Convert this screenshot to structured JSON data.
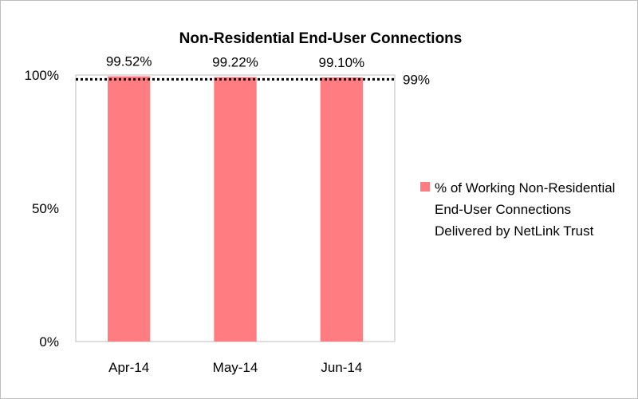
{
  "chart_data": {
    "type": "bar",
    "title": "Non-Residential End-User Connections",
    "categories": [
      "Apr-14",
      "May-14",
      "Jun-14"
    ],
    "series": [
      {
        "name": "% of Working Non-Residential End-User Connections Delivered by NetLink Trust",
        "values": [
          99.52,
          99.22,
          99.1
        ],
        "data_labels": [
          "99.52%",
          "99.22%",
          "99.10%"
        ],
        "color": "#ff7c80"
      }
    ],
    "ylim": [
      0,
      100
    ],
    "yticks": [
      0,
      50,
      100
    ],
    "ytick_labels": [
      "0%",
      "50%",
      "100%"
    ],
    "reference_line": {
      "value": 99,
      "label": "99%",
      "style": "dotted",
      "color": "#000000"
    },
    "xlabel": "",
    "ylabel": "",
    "grid": false,
    "legend_position": "right"
  }
}
